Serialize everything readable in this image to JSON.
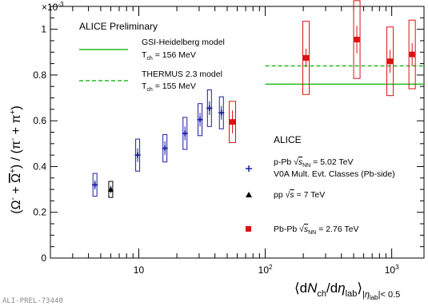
{
  "chart_data": {
    "type": "scatter",
    "title": "ALICE Preliminary",
    "exponent_label": "×10",
    "exponent_power": "-3",
    "ylabel": "(Ω⁻ + Ω̄⁺) / (π⁻ + π⁺)",
    "xlabel": "⟨dN_ch/dη_lab⟩|η_lab|< 0.5",
    "x_scale": "log",
    "xlim": [
      2,
      1800
    ],
    "ylim": [
      0,
      1.1
    ],
    "y_ticks": [
      0,
      0.2,
      0.4,
      0.6,
      0.8,
      1.0
    ],
    "y_tick_labels": [
      "0",
      "0.2",
      "0.4",
      "0.6",
      "0.8",
      "1"
    ],
    "x_major_ticks": [
      10,
      100,
      1000
    ],
    "x_tick_labels": [
      "10",
      "10²",
      "10³"
    ],
    "watermark": "ALI-PREL-73440",
    "legend_header": "ALICE",
    "models": [
      {
        "name": "GSI-Heidelberg model",
        "sub": "T_ch = 156 MeV",
        "style": "solid",
        "color": "#22bb22",
        "y": 0.76,
        "x_range": [
          100,
          1800
        ]
      },
      {
        "name": "THERMUS 2.3 model",
        "sub": "T_ch = 155 MeV",
        "style": "dashed",
        "color": "#22bb22",
        "y": 0.84,
        "x_range": [
          100,
          1800
        ]
      }
    ],
    "series": [
      {
        "name": "p-Pb √s_NN = 5.02 TeV",
        "name2": "V0A Mult. Evt. Classes (Pb-side)",
        "marker": "cross",
        "color": "#1a1aa8",
        "points": [
          {
            "x": 4.5,
            "y": 0.32,
            "stat": 0.02,
            "sys": 0.05
          },
          {
            "x": 9.8,
            "y": 0.45,
            "stat": 0.03,
            "sys": 0.07
          },
          {
            "x": 16.1,
            "y": 0.48,
            "stat": 0.03,
            "sys": 0.06
          },
          {
            "x": 23.2,
            "y": 0.545,
            "stat": 0.03,
            "sys": 0.07
          },
          {
            "x": 30.5,
            "y": 0.605,
            "stat": 0.03,
            "sys": 0.07
          },
          {
            "x": 36.2,
            "y": 0.655,
            "stat": 0.03,
            "sys": 0.08
          },
          {
            "x": 45.0,
            "y": 0.635,
            "stat": 0.03,
            "sys": 0.07
          }
        ]
      },
      {
        "name": "pp √s = 7 TeV",
        "marker": "triangle",
        "color": "#000000",
        "points": [
          {
            "x": 6.0,
            "y": 0.3,
            "stat": 0.015,
            "sys": 0.035
          }
        ]
      },
      {
        "name": "Pb-Pb √s_NN = 2.76 TeV",
        "marker": "square",
        "color": "#dd1111",
        "points": [
          {
            "x": 55.0,
            "y": 0.595,
            "stat": 0.05,
            "sys": 0.09
          },
          {
            "x": 210,
            "y": 0.875,
            "stat": 0.04,
            "sys": 0.16
          },
          {
            "x": 530,
            "y": 0.955,
            "stat": 0.06,
            "sys": 0.17
          },
          {
            "x": 970,
            "y": 0.86,
            "stat": 0.05,
            "sys": 0.15
          },
          {
            "x": 1450,
            "y": 0.89,
            "stat": 0.05,
            "sys": 0.15
          }
        ]
      }
    ]
  }
}
